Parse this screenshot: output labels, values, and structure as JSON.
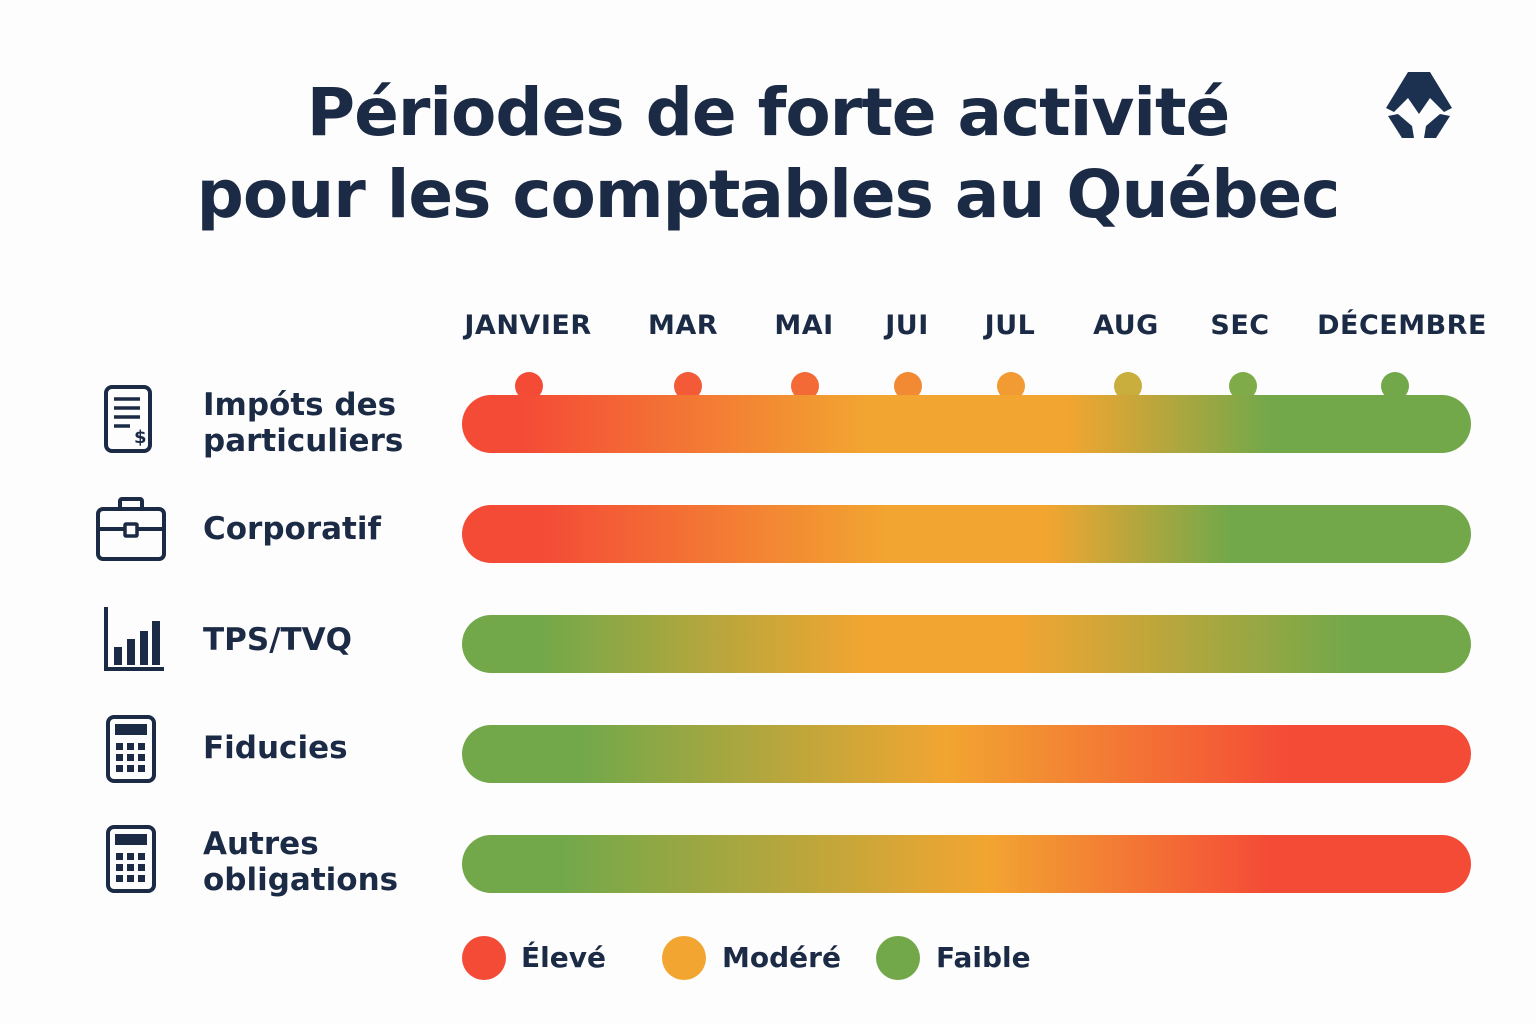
{
  "chart_data": {
    "type": "heatmap",
    "title_lines": [
      "Périodes de forte activité",
      "pour les comptables au Québec"
    ],
    "months": [
      "JANVIER",
      "MAR",
      "MAI",
      "JUI",
      "JUL",
      "AUG",
      "SEC",
      "DÉCEMBRE"
    ],
    "month_dot_levels": [
      "Élevé",
      "Élevé",
      "Élevé",
      "Modéré",
      "Modéré",
      "Modéré",
      "Faible",
      "Faible"
    ],
    "series": [
      {
        "name": "Impóts des particuliers",
        "icon": "tax-document-icon",
        "intensity": [
          "Élevé",
          "Élevé",
          "Modéré",
          "Modéré",
          "Faible",
          "Faible",
          "Faible",
          "Faible"
        ]
      },
      {
        "name": "Corporatif",
        "icon": "briefcase-icon",
        "intensity": [
          "Élevé",
          "Élevé",
          "Modéré",
          "Modéré",
          "Faible",
          "Faible",
          "Faible",
          "Faible"
        ]
      },
      {
        "name": "TPS/TVQ",
        "icon": "bar-chart-icon",
        "intensity": [
          "Faible",
          "Faible",
          "Modéré",
          "Modéré",
          "Modéré",
          "Faible",
          "Faible",
          "Faible"
        ]
      },
      {
        "name": "Fiducies",
        "icon": "calculator-icon",
        "intensity": [
          "Faible",
          "Faible",
          "Faible",
          "Modéré",
          "Modéré",
          "Élevé",
          "Élevé",
          "Élevé"
        ]
      },
      {
        "name": "Autres obligations",
        "icon": "calculator-icon",
        "intensity": [
          "Faible",
          "Faible",
          "Faible",
          "Modéré",
          "Modéré",
          "Élevé",
          "Élevé",
          "Élevé"
        ]
      }
    ],
    "legend": [
      {
        "label": "Élevé",
        "color": "#f44b37"
      },
      {
        "label": "Modéré",
        "color": "#f2a531"
      },
      {
        "label": "Faible",
        "color": "#73a84a"
      }
    ],
    "legend_position": "bottom"
  },
  "colors": {
    "high": "#f44b37",
    "medium": "#f2a531",
    "low": "#73a84a",
    "text": "#1c2b45"
  },
  "logo_icon": "brand-logo-icon"
}
